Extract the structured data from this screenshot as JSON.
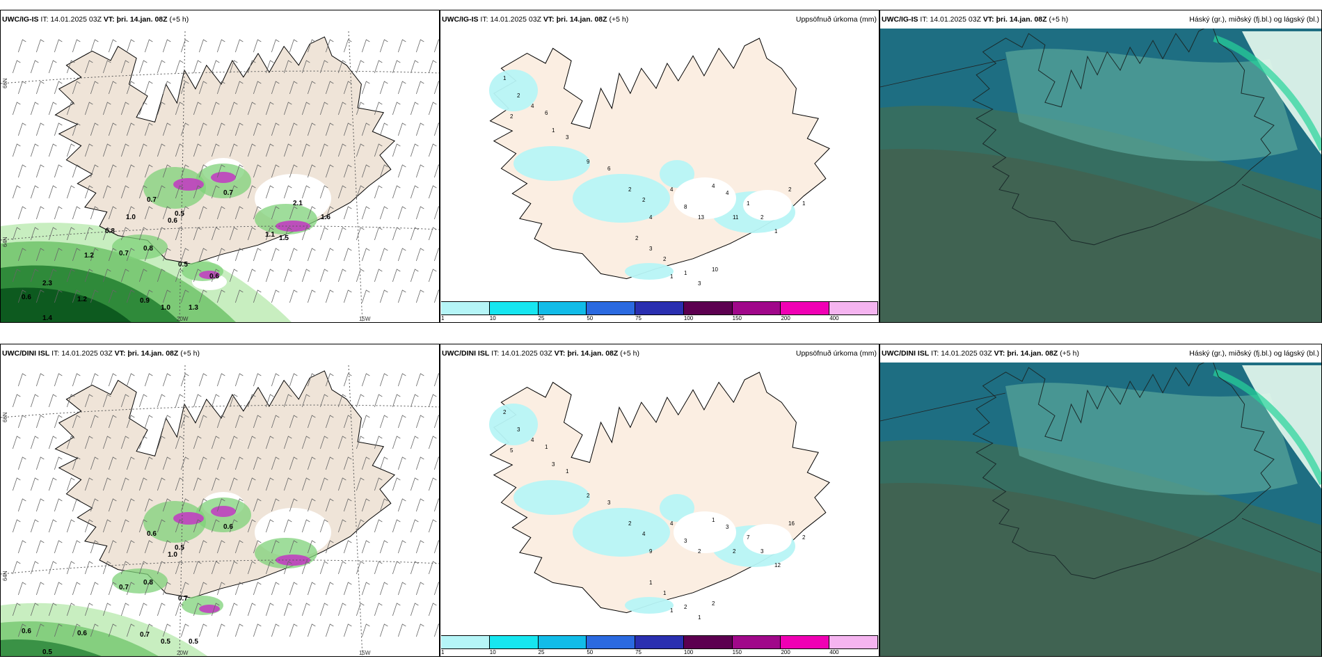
{
  "rows": [
    {
      "id": "igis",
      "panels": {
        "wind": {
          "model": "UWC/IG-IS",
          "it_label": "IT:",
          "it_value": "14.01.2025 03Z",
          "vt_label": "VT:",
          "vt_value": "þri. 14.jan. 08Z",
          "lead": "(+5 h)"
        },
        "precip": {
          "model": "UWC/IG-IS",
          "it_label": "IT:",
          "it_value": "14.01.2025 03Z",
          "vt_label": "VT:",
          "vt_value": "þri. 14.jan. 08Z",
          "lead": "(+5 h)",
          "title": "Uppsöfnuð úrkoma (mm)"
        },
        "cloud": {
          "model": "UWC/IG-IS",
          "it_label": "IT:",
          "it_value": "14.01.2025 03Z",
          "vt_label": "VT:",
          "vt_value": "þri. 14.jan. 08Z",
          "lead": "(+5 h)",
          "title": "Háský (gr.), miðský (fj.bl.) og lágský (bl.)"
        }
      },
      "grid_labels": {
        "lat66": "66N",
        "lat64": "64N",
        "lon20": "20W",
        "lon15": "15W"
      },
      "wind_values": [
        "0.7",
        "0.5",
        "0.6",
        "0.8",
        "0.5",
        "0.7",
        "0.6",
        "1.4",
        "1.2",
        "1.3",
        "0.9",
        "1.0",
        "0.7",
        "1.1",
        "1.5",
        "2.1",
        "1.6",
        "0.6",
        "1.0",
        "0.8",
        "1.2",
        "2.3"
      ],
      "precip_values": [
        "1",
        "2",
        "4",
        "6",
        "2",
        "1",
        "3",
        "9",
        "6",
        "2",
        "2",
        "4",
        "4",
        "8",
        "13",
        "4",
        "4",
        "11",
        "1",
        "2",
        "1",
        "2",
        "1",
        "3",
        "2",
        "1",
        "1",
        "3",
        "10",
        "2"
      ]
    },
    {
      "id": "dini",
      "panels": {
        "wind": {
          "model": "UWC/DINI ISL",
          "it_label": "IT:",
          "it_value": "14.01.2025 03Z",
          "vt_label": "VT:",
          "vt_value": "þri. 14.jan. 08Z",
          "lead": "(+5 h)"
        },
        "precip": {
          "model": "UWC/DINI ISL",
          "it_label": "IT:",
          "it_value": "14.01.2025 03Z",
          "vt_label": "VT:",
          "vt_value": "þri. 14.jan. 08Z",
          "lead": "(+5 h)",
          "title": "Uppsöfnuð úrkoma (mm)"
        },
        "cloud": {
          "model": "UWC/DINI ISL",
          "it_label": "IT:",
          "it_value": "14.01.2025 03Z",
          "vt_label": "VT:",
          "vt_value": "þri. 14.jan. 08Z",
          "lead": "(+5 h)",
          "title": "Háský (gr.), miðský (fj.bl.) og lágský (bl.)"
        }
      },
      "grid_labels": {
        "lat66": "66N",
        "lat64": "64N",
        "lon20": "20W",
        "lon15": "15W"
      },
      "wind_values": [
        "0.6",
        "0.5",
        "1.0",
        "0.8",
        "0.7",
        "0.7",
        "0.6",
        "0.5",
        "0.6",
        "0.5",
        "0.7",
        "0.5",
        "0.6"
      ],
      "precip_values": [
        "2",
        "3",
        "4",
        "1",
        "5",
        "3",
        "1",
        "2",
        "3",
        "2",
        "4",
        "9",
        "4",
        "3",
        "2",
        "1",
        "3",
        "2",
        "7",
        "3",
        "12",
        "16",
        "2",
        "1",
        "1",
        "1",
        "2",
        "1",
        "2"
      ]
    }
  ],
  "colorbar": {
    "ticks": [
      "1",
      "10",
      "25",
      "50",
      "75",
      "100",
      "150",
      "200",
      "400"
    ],
    "colors": [
      "#b5f5f7",
      "#17e6f0",
      "#12bce8",
      "#2b6ae0",
      "#2a2fb0",
      "#5c0050",
      "#a0088a",
      "#f000b4",
      "#f5b4f0"
    ]
  },
  "colors": {
    "land": "#efe4d8",
    "land_precip": "#fbeee2",
    "precip_light": "#b7f4f6"
  }
}
